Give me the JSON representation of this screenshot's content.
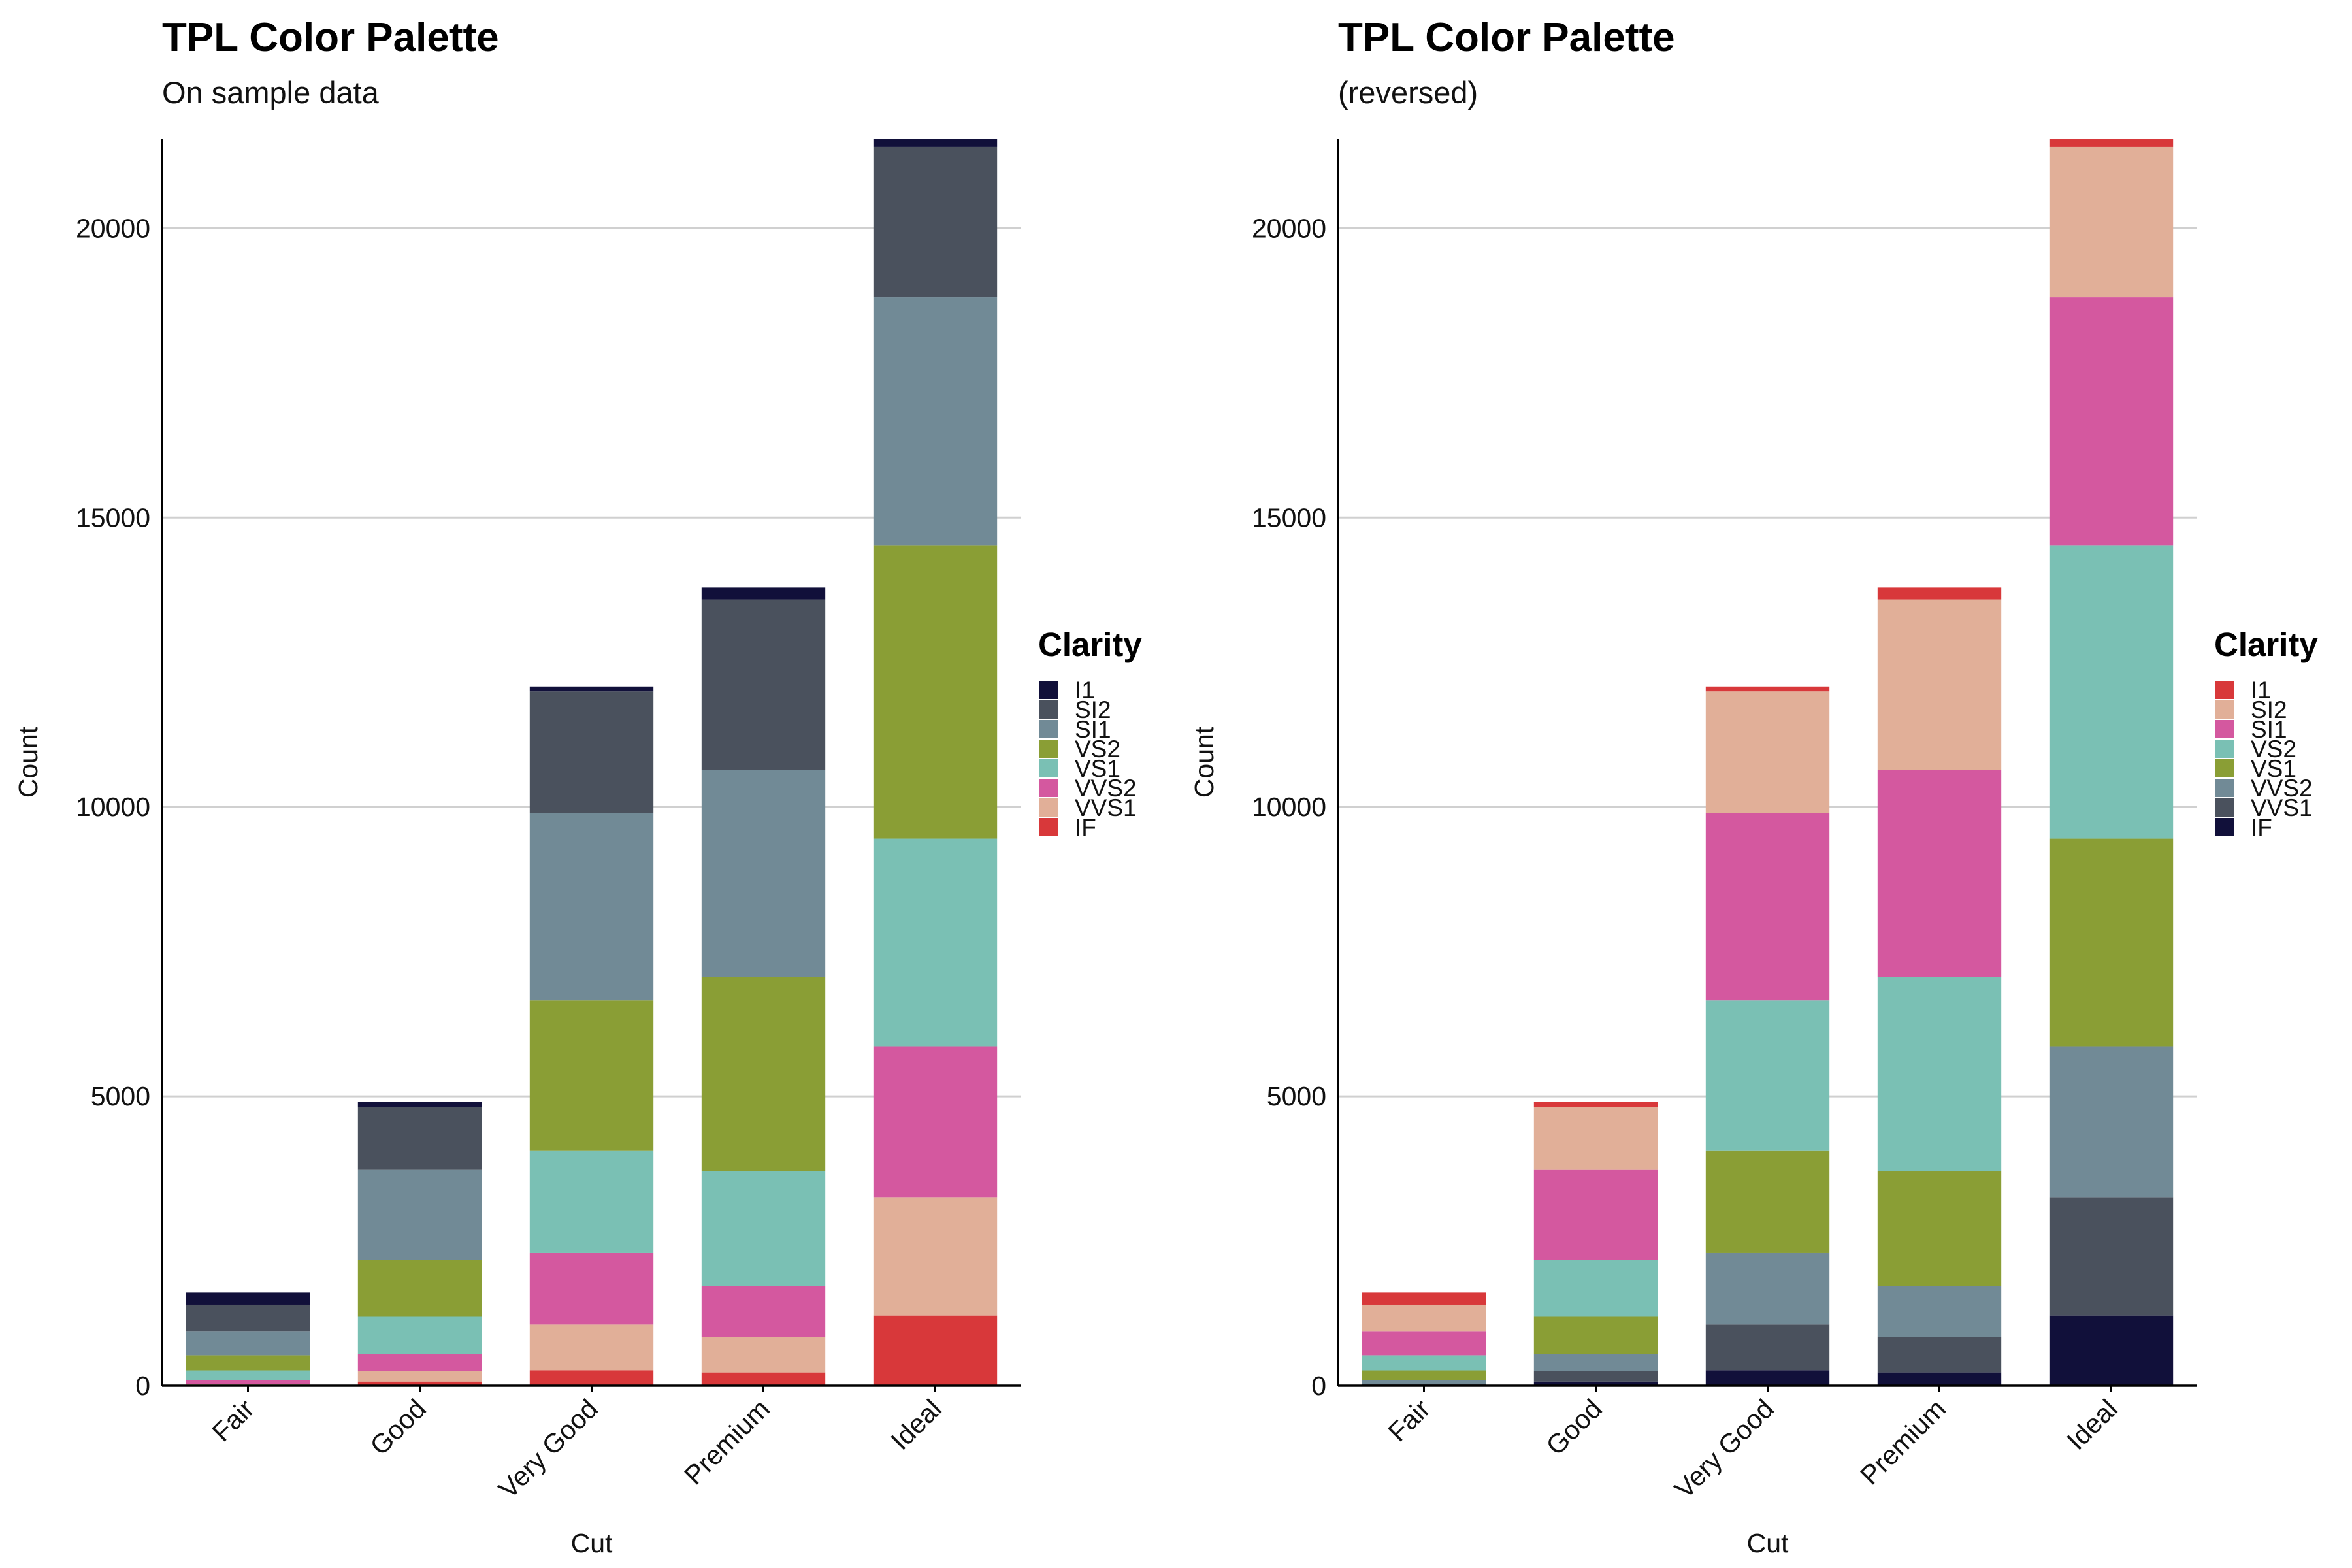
{
  "chart_data": [
    {
      "type": "bar",
      "stacked": true,
      "title": "TPL Color Palette",
      "subtitle": "On sample data",
      "xlabel": "Cut",
      "ylabel": "Count",
      "ylim": [
        0,
        21551
      ],
      "yticks": [
        0,
        5000,
        10000,
        15000,
        20000
      ],
      "grid": "horizontal major",
      "legend": {
        "title": "Clarity",
        "placement": "right"
      },
      "categories": [
        "Fair",
        "Good",
        "Very Good",
        "Premium",
        "Ideal"
      ],
      "series": [
        {
          "name": "I1",
          "color": "#11103a",
          "values": [
            210,
            96,
            84,
            205,
            146
          ]
        },
        {
          "name": "SI2",
          "color": "#4a515d",
          "values": [
            466,
            1081,
            2100,
            2949,
            2598
          ]
        },
        {
          "name": "SI1",
          "color": "#718a96",
          "values": [
            408,
            1560,
            3240,
            3575,
            4282
          ]
        },
        {
          "name": "VS2",
          "color": "#8a9e35",
          "values": [
            261,
            978,
            2591,
            3357,
            5071
          ]
        },
        {
          "name": "VS1",
          "color": "#7ac0b4",
          "values": [
            170,
            648,
            1775,
            1989,
            3589
          ]
        },
        {
          "name": "VVS2",
          "color": "#d4589f",
          "values": [
            69,
            286,
            1235,
            870,
            2606
          ]
        },
        {
          "name": "VVS1",
          "color": "#e1af98",
          "values": [
            17,
            186,
            789,
            616,
            2047
          ]
        },
        {
          "name": "IF",
          "color": "#d8383a",
          "values": [
            9,
            71,
            268,
            230,
            1212
          ]
        }
      ]
    },
    {
      "type": "bar",
      "stacked": true,
      "title": "TPL Color Palette",
      "subtitle": "(reversed)",
      "xlabel": "Cut",
      "ylabel": "Count",
      "ylim": [
        0,
        21551
      ],
      "yticks": [
        0,
        5000,
        10000,
        15000,
        20000
      ],
      "grid": "horizontal major",
      "legend": {
        "title": "Clarity",
        "placement": "right"
      },
      "categories": [
        "Fair",
        "Good",
        "Very Good",
        "Premium",
        "Ideal"
      ],
      "series": [
        {
          "name": "I1",
          "color": "#d8383a",
          "values": [
            210,
            96,
            84,
            205,
            146
          ]
        },
        {
          "name": "SI2",
          "color": "#e1af98",
          "values": [
            466,
            1081,
            2100,
            2949,
            2598
          ]
        },
        {
          "name": "SI1",
          "color": "#d4589f",
          "values": [
            408,
            1560,
            3240,
            3575,
            4282
          ]
        },
        {
          "name": "VS2",
          "color": "#7ac0b4",
          "values": [
            261,
            978,
            2591,
            3357,
            5071
          ]
        },
        {
          "name": "VS1",
          "color": "#8a9e35",
          "values": [
            170,
            648,
            1775,
            1989,
            3589
          ]
        },
        {
          "name": "VVS2",
          "color": "#718a96",
          "values": [
            69,
            286,
            1235,
            870,
            2606
          ]
        },
        {
          "name": "VVS1",
          "color": "#4a515d",
          "values": [
            17,
            186,
            789,
            616,
            2047
          ]
        },
        {
          "name": "IF",
          "color": "#11103a",
          "values": [
            9,
            71,
            268,
            230,
            1212
          ]
        }
      ]
    }
  ]
}
